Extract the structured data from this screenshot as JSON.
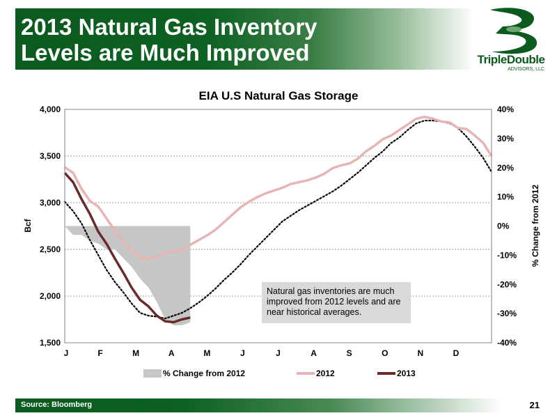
{
  "slide": {
    "title_line1": "2013 Natural Gas Inventory",
    "title_line2": "Levels are Much Improved",
    "logo_name": "TripleDouble",
    "logo_sub": "ADVISORS, LLC",
    "source": "Source: Bloomberg",
    "page_number": "21"
  },
  "colors": {
    "brand_green": "#0b5a1e",
    "series_2012": "#e7b4b4",
    "series_2013": "#6b2a2a",
    "series_hist": "#000000",
    "area_change": "#c6c6c6"
  },
  "annotation": "Natural gas inventories are much improved from 2012 levels and are near historical averages.",
  "chart_data": {
    "type": "line",
    "title": "EIA U.S Natural Gas Storage",
    "ylabel": "Bcf",
    "y2label": "% Change from 2012",
    "ylim": [
      1500,
      4000
    ],
    "y2lim": [
      -40,
      40
    ],
    "yticks": [
      "1,500",
      "2,000",
      "2,500",
      "3,000",
      "3,500",
      "4,000"
    ],
    "yticks_values": [
      1500,
      2000,
      2500,
      3000,
      3500,
      4000
    ],
    "y2ticks": [
      "-40%",
      "-30%",
      "-20%",
      "-10%",
      "0%",
      "10%",
      "20%",
      "30%",
      "40%"
    ],
    "y2ticks_values": [
      -40,
      -30,
      -20,
      -10,
      0,
      10,
      20,
      30,
      40
    ],
    "months": [
      "J",
      "F",
      "M",
      "A",
      "M",
      "J",
      "J",
      "A",
      "S",
      "O",
      "N",
      "D"
    ],
    "xlim": [
      0,
      51
    ],
    "grid": true,
    "legend_position": "bottom",
    "series": [
      {
        "name": "% Change from 2012",
        "kind": "area",
        "axis": "right",
        "x": [
          0,
          1,
          2,
          3,
          4,
          5,
          6,
          7,
          8,
          9,
          10,
          11,
          12,
          13,
          14,
          15
        ],
        "values": [
          0,
          -3,
          -3,
          -5,
          -6,
          -8,
          -8,
          -11,
          -14,
          -18,
          -21,
          -26,
          -32,
          -34,
          -34,
          -33
        ]
      },
      {
        "name": "2012",
        "kind": "line",
        "axis": "left",
        "x": [
          0,
          1,
          2,
          3,
          4,
          5,
          6,
          7,
          8,
          9,
          10,
          11,
          12,
          13,
          14,
          15,
          16,
          17,
          18,
          19,
          20,
          21,
          22,
          23,
          24,
          25,
          26,
          27,
          28,
          29,
          30,
          31,
          32,
          33,
          34,
          35,
          36,
          37,
          38,
          39,
          40,
          41,
          42,
          43,
          44,
          45,
          46,
          47,
          48,
          49,
          50,
          51
        ],
        "values": [
          3380,
          3320,
          3150,
          3020,
          2960,
          2830,
          2700,
          2580,
          2480,
          2430,
          2390,
          2420,
          2470,
          2480,
          2490,
          2550,
          2600,
          2650,
          2710,
          2790,
          2870,
          2950,
          3010,
          3060,
          3100,
          3130,
          3160,
          3200,
          3220,
          3240,
          3270,
          3310,
          3370,
          3400,
          3420,
          3470,
          3550,
          3610,
          3680,
          3720,
          3780,
          3840,
          3900,
          3920,
          3900,
          3870,
          3860,
          3800,
          3790,
          3720,
          3640,
          3500
        ]
      },
      {
        "name": "2013",
        "kind": "line",
        "axis": "left",
        "x": [
          0,
          1,
          2,
          3,
          4,
          5,
          6,
          7,
          8,
          9,
          10,
          11,
          12,
          13,
          14,
          15
        ],
        "values": [
          3320,
          3220,
          3040,
          2880,
          2690,
          2560,
          2400,
          2250,
          2090,
          1960,
          1890,
          1790,
          1730,
          1720,
          1750,
          1770
        ]
      },
      {
        "kind": "dotted",
        "axis": "left",
        "x": [
          0,
          1,
          2,
          3,
          4,
          5,
          6,
          7,
          8,
          9,
          10,
          11,
          12,
          13,
          14,
          15,
          16,
          17,
          18,
          19,
          20,
          21,
          22,
          23,
          24,
          25,
          26,
          27,
          28,
          29,
          30,
          31,
          32,
          33,
          34,
          35,
          36,
          37,
          38,
          39,
          40,
          41,
          42,
          43,
          44,
          45,
          46,
          47,
          48,
          49,
          50,
          51
        ],
        "values": [
          3010,
          2910,
          2780,
          2600,
          2440,
          2280,
          2150,
          2040,
          1920,
          1820,
          1790,
          1780,
          1760,
          1790,
          1820,
          1870,
          1930,
          2000,
          2080,
          2170,
          2250,
          2340,
          2440,
          2530,
          2620,
          2710,
          2800,
          2860,
          2920,
          2970,
          3020,
          3070,
          3120,
          3180,
          3250,
          3320,
          3400,
          3480,
          3550,
          3640,
          3700,
          3780,
          3850,
          3880,
          3880,
          3870,
          3850,
          3800,
          3710,
          3600,
          3480,
          3330
        ]
      }
    ]
  }
}
